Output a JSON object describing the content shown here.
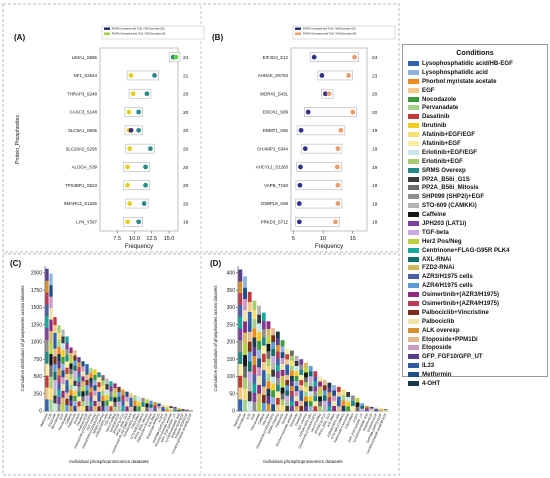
{
  "legend": {
    "title": "Conditions",
    "items": [
      {
        "label": "Lysophosphatidic acid/HB-EGF",
        "color": "#2e63b0"
      },
      {
        "label": "Lysophosphatidic acid",
        "color": "#8fb3dd"
      },
      {
        "label": "Phorbol myristate acetate",
        "color": "#f08a1c"
      },
      {
        "label": "EGF",
        "color": "#f6c78a"
      },
      {
        "label": "Nocodazole",
        "color": "#3d9b3a"
      },
      {
        "label": "Pervanadate",
        "color": "#a6d18c"
      },
      {
        "label": "Dasatinib",
        "color": "#c23a36"
      },
      {
        "label": "Ibrutinib",
        "color": "#f3cc1c"
      },
      {
        "label": "Afatinib+EGF/EGF",
        "color": "#f7df6f"
      },
      {
        "label": "Afatinib+EGF",
        "color": "#fbee9e"
      },
      {
        "label": "Erlotinib+EGF/EGF",
        "color": "#c9e6ea"
      },
      {
        "label": "Erlotinib+EGF",
        "color": "#a6cd6f"
      },
      {
        "label": "SRMS Overexp",
        "color": "#1f8a86"
      },
      {
        "label": "PP2A_B56i_G1S",
        "color": "#3b3b3b"
      },
      {
        "label": "PP2A_B56i_Mitosis",
        "color": "#6b6b6b"
      },
      {
        "label": "SHP099 (SHP2i)+EGF",
        "color": "#8f8f8f"
      },
      {
        "label": "STO-609 (CAMKKi)",
        "color": "#b5b5b5"
      },
      {
        "label": "Caffeine",
        "color": "#161616"
      },
      {
        "label": "JPH203 (LAT1i)",
        "color": "#7e3f9b"
      },
      {
        "label": "TGF-beta",
        "color": "#c9a8dd"
      },
      {
        "label": "Her2 Pos/Neg",
        "color": "#b9d33c"
      },
      {
        "label": "Centrinone+FLAG-G95R PLK4",
        "color": "#16a79d"
      },
      {
        "label": "AXL-RNAi",
        "color": "#0f6e6c"
      },
      {
        "label": "FZD2-RNAi",
        "color": "#d3b95e"
      },
      {
        "label": "AZR3/H1975 cells",
        "color": "#4b5fa8"
      },
      {
        "label": "AZR4/H1975 cells",
        "color": "#5a9ad6"
      },
      {
        "label": "Osimertinib+(AZR3/H1975)",
        "color": "#8f2a7e"
      },
      {
        "label": "Osimertinib+(AZR4/H1975)",
        "color": "#b83a55"
      },
      {
        "label": "Palbociclib+Vincristine",
        "color": "#7b2e1e"
      },
      {
        "label": "Palbociclib",
        "color": "#f2e4a8"
      },
      {
        "label": "ALK overexp",
        "color": "#d6922e"
      },
      {
        "label": "Etoposide+PPM1Di",
        "color": "#e3b991"
      },
      {
        "label": "Etoposide",
        "color": "#c99bc1"
      },
      {
        "label": "GFP_FGF10/GFP_UT",
        "color": "#5a3d8c"
      },
      {
        "label": "IL33",
        "color": "#2f5aa0"
      },
      {
        "label": "Metformin",
        "color": "#1c4f88"
      },
      {
        "label": "4-OHT",
        "color": "#1a3a4c"
      }
    ]
  },
  "chart_data": [
    {
      "panel": "(A)",
      "type": "scatter",
      "ylabel": "Protein_Phosphosites",
      "xlabel": "Frequency",
      "xlim": [
        5,
        16.3
      ],
      "xticks": [
        7.5,
        10.0,
        12.5,
        15.0
      ],
      "legend": [
        {
          "label": "PHOPs Increased with TLN1 Y436 Decrease (25)",
          "color": "#1f2a6e"
        },
        {
          "label": "PHOPs Decreased with TLN1 Y436 Decrease (IN)",
          "color": "#9acd32"
        }
      ],
      "categories": [
        "LIMA1_S686",
        "NF1_S2543",
        "THRAP3_S248",
        "CASC3_S148",
        "SLC9A1_S605",
        "SLC20A2_S256",
        "ALOGA_S39",
        "TPS3BP1_S523",
        "SMARC2_S1326",
        "LYN_Y397"
      ],
      "counts": [
        24,
        21,
        20,
        20,
        20,
        20,
        20,
        20,
        20,
        19
      ],
      "series": [
        {
          "name": "yellow",
          "color": "#e8d01e",
          "values": [
            15.6,
            9.5,
            9.8,
            9.2,
            9.2,
            9.3,
            9.0,
            9.0,
            9.3,
            9.0
          ]
        },
        {
          "name": "teal",
          "color": "#2a8a8a",
          "values": [
            15.6,
            12.9,
            11.8,
            10.6,
            10.6,
            12.3,
            11.6,
            11.6,
            11.4,
            10.6
          ]
        },
        {
          "name": "purple",
          "color": "#3b2a7a",
          "values": [
            null,
            null,
            null,
            null,
            9.5,
            null,
            null,
            null,
            null,
            null
          ]
        },
        {
          "name": "green",
          "color": "#5fcf3a",
          "values": [
            16.0,
            null,
            null,
            null,
            null,
            null,
            null,
            null,
            null,
            null
          ]
        }
      ]
    },
    {
      "panel": "(B)",
      "type": "scatter",
      "xlabel": "Frequency",
      "xlim": [
        4.6,
        17.4
      ],
      "xticks": [
        5,
        10,
        15
      ],
      "legend": [
        {
          "label": "PHOPs Increased with TLN1 Y436 Decrease (25)",
          "color": "#1f2a6e"
        },
        {
          "label": "PHOPs Decreased with TLN1 Y436 Decrease (IN)",
          "color": "#e8a06a"
        }
      ],
      "categories": [
        "EIF4G3_S12",
        "AHNAK_S5763",
        "WDR43_S431",
        "DOCK1_S89",
        "DNMT1_S65",
        "CHAMP1_S344",
        "AHCYL1_S1283",
        "VAPB_T150",
        "OSBPL8_S68",
        "PRKD3_S712"
      ],
      "counts": [
        24,
        23,
        20,
        20,
        19,
        19,
        19,
        19,
        19,
        18
      ],
      "series": [
        {
          "name": "navy",
          "color": "#33308a",
          "values": [
            8.5,
            9.8,
            10.4,
            7.5,
            6.3,
            7.0,
            6.2,
            6.1,
            6.0,
            6.0
          ]
        },
        {
          "name": "peach",
          "color": "#e79d6d",
          "values": [
            15.3,
            14.3,
            11.0,
            15.0,
            13.0,
            12.5,
            12.4,
            12.5,
            12.5,
            12.1
          ]
        }
      ]
    },
    {
      "panel": "(C)",
      "type": "bar",
      "ylabel": "Cumulative distribution of phosphosites across datasets",
      "xlabel": "Individual phosphoproteomics datasets",
      "ylim": [
        0,
        2100
      ],
      "yticks": [
        0,
        250,
        500,
        750,
        1000,
        1250,
        1500,
        1750,
        2000
      ],
      "categories": [
        "Metformin",
        "IL33",
        "Etoposide",
        "Nocodazole",
        "EGF",
        "Pervanadate",
        "Caffeine",
        "Palbociclib",
        "Ibrutinib",
        "Dasatinib",
        "Afatinib+EGF",
        "Osimertinib+(AZR3/H1975)",
        "ALK overexp",
        "Osimertinib+(AZR4/H1975)",
        "SRMS Overexp",
        "AZR3/H1975 cells",
        "TGF-beta",
        "Her2 Pos/Neg",
        "Erlotinib+EGF",
        "JPH203 (LAT1i)",
        "PP2A_B56i_G1S",
        "Centrinone+FLAG-G95R PLK4",
        "AZR4/H1975 cells",
        "FZD2-RNAi",
        "STO-609 (CAMKKi)",
        "PP2A_B56i_Mitosis",
        "Palbociclib+Vincristine",
        "AXL-RNAi",
        "Etoposide+PPM1Di",
        "4-OHT",
        "SHP099 (SHP2i)+EGF",
        "Phorbol myristate acetate",
        "GFP_FGF10/GFP_UT",
        "Lysophosphatidic acid",
        "Afatinib+EGF/EGF",
        "Erlotinib+EGF/EGF",
        "Lysophosphatidic acid/HB-EGF"
      ],
      "values": [
        2060,
        1990,
        1360,
        1240,
        1180,
        1080,
        920,
        880,
        780,
        720,
        680,
        620,
        600,
        560,
        520,
        470,
        430,
        400,
        350,
        310,
        280,
        260,
        230,
        210,
        190,
        170,
        150,
        130,
        110,
        90,
        80,
        70,
        60,
        45,
        30,
        20,
        10
      ]
    },
    {
      "panel": "(D)",
      "type": "bar",
      "ylabel": "Cumulative distribution of phosphosites across datasets",
      "xlabel": "Individual phosphoproteomics datasets",
      "ylim": [
        0,
        420
      ],
      "yticks": [
        0,
        50,
        100,
        150,
        200,
        250,
        300,
        350,
        400
      ],
      "categories": [
        "Metformin",
        "Nocodazole",
        "IL33",
        "EGF",
        "Pervanadate",
        "Caffeine",
        "TGF-beta",
        "Osimertinib+(AZR3/H1975)",
        "SRMS Overexp",
        "Palbociclib",
        "Ibrutinib",
        "Phorbol myristate acetate",
        "Etoposide",
        "Dasatinib",
        "ALK overexp",
        "AZR3/H1975 cells",
        "Osimertinib+(AZR4/H1975)",
        "Her2 Pos/Neg",
        "JPH203 (LAT1i)",
        "PP2A_B56i_G1S",
        "AXL-RNAi",
        "AZR4/H1975 cells",
        "STO-609 (CAMKKi)",
        "Palbociclib+Vincristine",
        "FZD2-RNAi",
        "4-OHT",
        "GFP_FGF10/GFP_UT",
        "Lysophosphatidic acid",
        "Afatinib+EGF",
        "Erlotinib+EGF",
        "SHP099 (SHP2i)+EGF",
        "Lysophosphatidic acid/HB-EGF"
      ],
      "values": [
        410,
        390,
        345,
        320,
        305,
        285,
        260,
        240,
        230,
        205,
        180,
        175,
        160,
        150,
        140,
        130,
        115,
        100,
        90,
        82,
        75,
        70,
        62,
        55,
        45,
        38,
        22,
        15,
        12,
        10,
        8,
        5
      ]
    }
  ]
}
